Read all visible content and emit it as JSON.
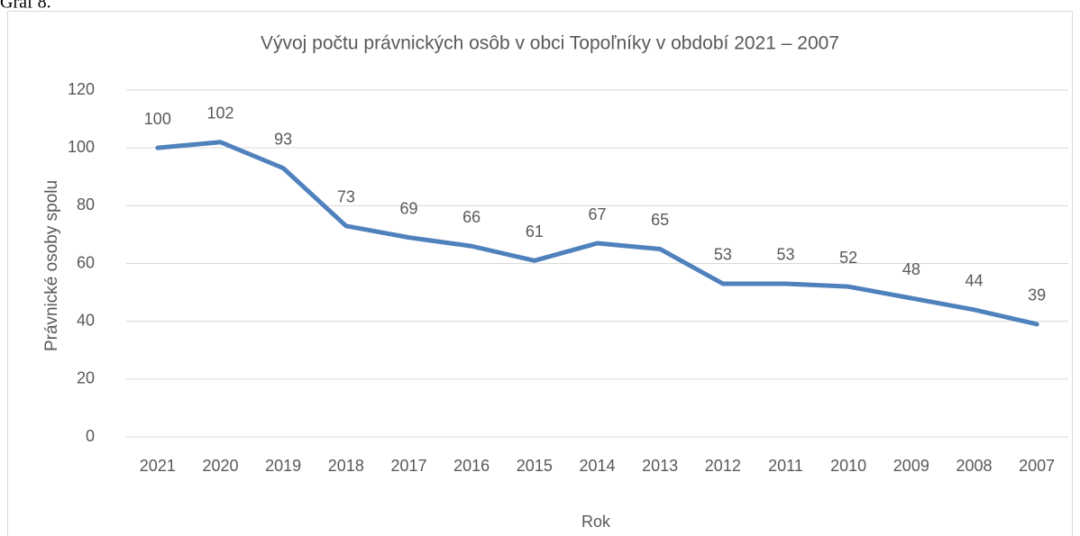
{
  "caption": "Graf 8.",
  "chart_data": {
    "type": "line",
    "title": "Vývoj počtu právnických osôb v obci Topoľníky v období 2021 – 2007",
    "x_label": "Rok",
    "y_label": "Právnické osoby spolu",
    "categories": [
      "2021",
      "2020",
      "2019",
      "2018",
      "2017",
      "2016",
      "2015",
      "2014",
      "2013",
      "2012",
      "2011",
      "2010",
      "2009",
      "2008",
      "2007"
    ],
    "series": [
      {
        "name": "Právnické osoby spolu",
        "color": "#4f81bd",
        "values": [
          100,
          102,
          93,
          73,
          69,
          66,
          61,
          67,
          65,
          53,
          53,
          52,
          48,
          44,
          39
        ]
      }
    ],
    "ylim": [
      0,
      120
    ],
    "yticks": [
      0,
      20,
      40,
      60,
      80,
      100,
      120
    ],
    "grid": true
  }
}
